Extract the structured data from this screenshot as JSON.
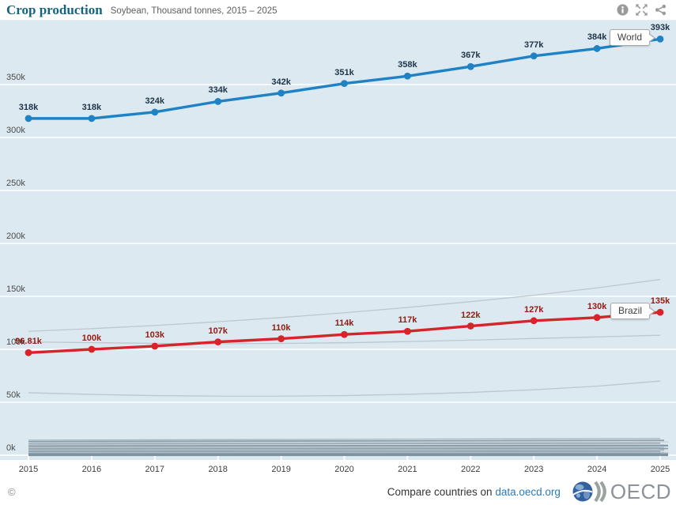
{
  "header": {
    "title": "Crop production",
    "subtitle": "Soybean, Thousand tonnes, 2015 – 2025",
    "icons": [
      "info-icon",
      "fullscreen-icon",
      "share-icon"
    ]
  },
  "colors": {
    "world_line": "#1e82c4",
    "brazil_line": "#d7232a",
    "world_label": "#1d3448",
    "brazil_label": "#931b13",
    "plot_background": "#dde9f0",
    "gridline": "#ffffff",
    "background_line": "#bdc7cd",
    "link": "#2b7bb9",
    "title": "#14647e"
  },
  "chart_data": {
    "type": "line",
    "title": "Crop production",
    "subtitle": "Soybean, Thousand tonnes, 2015 – 2025",
    "unit": "Thousand tonnes",
    "x": [
      2015,
      2016,
      2017,
      2018,
      2019,
      2020,
      2021,
      2022,
      2023,
      2024,
      2025
    ],
    "ylim": [
      0,
      410
    ],
    "grid": "horizontal-white",
    "legend_position": "series-end-labels",
    "y_ticks": [
      {
        "value": 0,
        "label": "0k"
      },
      {
        "value": 50,
        "label": "50k"
      },
      {
        "value": 100,
        "label": "100k"
      },
      {
        "value": 150,
        "label": "150k"
      },
      {
        "value": 200,
        "label": "200k"
      },
      {
        "value": 250,
        "label": "250k"
      },
      {
        "value": 300,
        "label": "300k"
      },
      {
        "value": 350,
        "label": "350k"
      }
    ],
    "series": [
      {
        "name": "World",
        "color": "#1e82c4",
        "label_color": "#1d3448",
        "values": [
          318,
          318,
          324,
          334,
          342,
          351,
          358,
          367,
          377,
          384,
          393
        ],
        "point_labels": [
          "318k",
          "318k",
          "324k",
          "334k",
          "342k",
          "351k",
          "358k",
          "367k",
          "377k",
          "384k",
          "393k"
        ]
      },
      {
        "name": "Brazil",
        "color": "#d7232a",
        "label_color": "#931b13",
        "values": [
          96.81,
          100,
          103,
          107,
          110,
          114,
          117,
          122,
          127,
          130,
          135
        ],
        "point_labels": [
          "96.81k",
          "100k",
          "103k",
          "107k",
          "110k",
          "114k",
          "117k",
          "122k",
          "127k",
          "130k",
          "135k"
        ]
      }
    ],
    "background_series": [
      {
        "name": "unlabeled-country-line",
        "values": [
          117,
          119.5,
          122.5,
          126,
          130,
          134.5,
          139.5,
          145,
          151,
          158,
          166
        ]
      },
      {
        "name": "unlabeled-country-line",
        "values": [
          107,
          106.3,
          105.6,
          105.3,
          105.6,
          106.2,
          107.3,
          108.7,
          110.2,
          111.7,
          113.3
        ]
      },
      {
        "name": "unlabeled-country-line",
        "values": [
          59,
          57.4,
          56.3,
          55.8,
          55.8,
          56.3,
          57.5,
          59.3,
          61.8,
          65.2,
          70
        ]
      }
    ],
    "band_series": [
      [
        14.2,
        15.8
      ],
      [
        12.9,
        14.0
      ],
      [
        11.7,
        12.6
      ],
      [
        10.6,
        11.4
      ],
      [
        9.5,
        10.2
      ],
      [
        8.5,
        9.1
      ],
      [
        7.6,
        8.1
      ],
      [
        6.7,
        7.2
      ],
      [
        5.9,
        6.3
      ],
      [
        5.1,
        5.5
      ],
      [
        4.4,
        4.7
      ],
      [
        3.7,
        4.0
      ],
      [
        3.1,
        3.3
      ],
      [
        2.5,
        2.7
      ],
      [
        2.0,
        2.1
      ],
      [
        1.5,
        1.6
      ],
      [
        1.1,
        1.15
      ],
      [
        0.75,
        0.8
      ],
      [
        0.45,
        0.5
      ],
      [
        0.2,
        0.2
      ],
      [
        0.05,
        0.05
      ]
    ]
  },
  "footer": {
    "copyright": "©",
    "compare_prefix": "Compare countries on",
    "compare_link": "data.oecd.org",
    "logo_text": "OECD"
  }
}
